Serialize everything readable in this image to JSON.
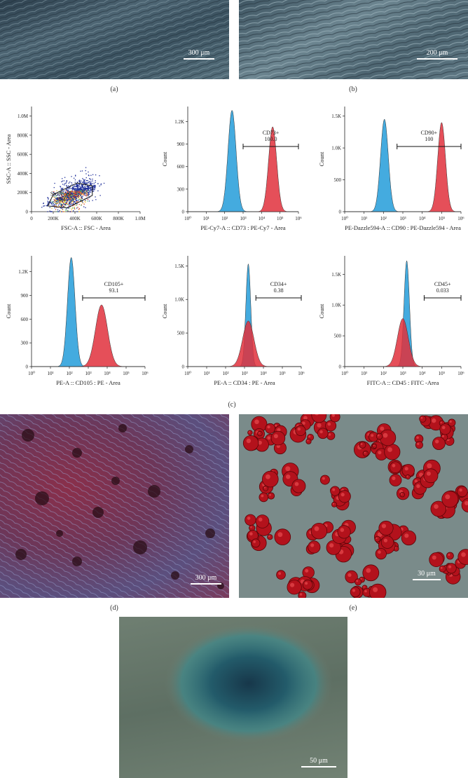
{
  "captions": {
    "a": "(a)",
    "b": "(b)",
    "c": "(c)",
    "d": "(d)",
    "e": "(e)"
  },
  "scale_bars": {
    "a": "300 μm",
    "b": "200 μm",
    "d": "300 μm",
    "e": "30 μm",
    "f": "50 μm"
  },
  "colors": {
    "blue": "#3aa6dd",
    "red": "#e0303c",
    "overlap": "#5a6a8a",
    "density_low": "#1f2f9a"
  },
  "chart_data": [
    {
      "type": "scatter",
      "id": "fsc-ssc",
      "xlabel": "FSC-A :: FSC - Area",
      "ylabel": "SSC-A :: SSC - Area",
      "xticks": [
        "0",
        "200K",
        "400K",
        "600K",
        "800K",
        "1.0M"
      ],
      "yticks": [
        "0",
        "200K",
        "400K",
        "600K",
        "800K",
        "1.0M"
      ],
      "xlim": [
        0,
        1000000
      ],
      "ylim": [
        0,
        1100000
      ],
      "gate": {
        "name": "Stem cell",
        "value": "70.4"
      }
    },
    {
      "type": "area",
      "id": "cd73",
      "xlabel": "PE-Cy7-A :: CD73 : PE-Cy7 - Area",
      "ylabel": "Count",
      "xticks": [
        "10⁰",
        "10¹",
        "10²",
        "10³",
        "10⁴",
        "10⁵",
        "10⁶"
      ],
      "yticks": [
        "0",
        "300",
        "600",
        "900",
        "1.2K"
      ],
      "ylim": [
        0,
        1400
      ],
      "gate": {
        "name": "CD73+",
        "value": "100.0",
        "from": 3,
        "to": 6
      },
      "series": [
        {
          "color": "blue",
          "peak_log": 2.4,
          "height": 1350,
          "width": 0.22
        },
        {
          "color": "red",
          "peak_log": 4.6,
          "height": 1130,
          "width": 0.22
        }
      ]
    },
    {
      "type": "area",
      "id": "cd90",
      "xlabel": "PE-Dazzle594-A :: CD90 : PE-Dazzle594 - Area",
      "ylabel": "Count",
      "xticks": [
        "10⁰",
        "10¹",
        "10²",
        "10³",
        "10⁴",
        "10⁵",
        "10⁶"
      ],
      "yticks": [
        "0",
        "500",
        "1.0K",
        "1.5K"
      ],
      "ylim": [
        0,
        1650
      ],
      "gate": {
        "name": "CD90+",
        "value": "100",
        "from": 2.7,
        "to": 6
      },
      "series": [
        {
          "color": "blue",
          "peak_log": 2.05,
          "height": 1450,
          "width": 0.2
        },
        {
          "color": "red",
          "peak_log": 5.0,
          "height": 1400,
          "width": 0.2
        }
      ]
    },
    {
      "type": "area",
      "id": "cd105",
      "xlabel": "PE-A :: CD105 : PE - Area",
      "ylabel": "Count",
      "xticks": [
        "10⁰",
        "10¹",
        "10²",
        "10³",
        "10⁴",
        "10⁵",
        "10⁶"
      ],
      "yticks": [
        "0",
        "300",
        "600",
        "900",
        "1.2K"
      ],
      "ylim": [
        0,
        1400
      ],
      "gate": {
        "name": "CD105+",
        "value": "93.1",
        "from": 2.7,
        "to": 6
      },
      "series": [
        {
          "color": "blue",
          "peak_log": 2.1,
          "height": 1380,
          "width": 0.2
        },
        {
          "color": "red",
          "peak_log": 3.7,
          "height": 780,
          "width": 0.32
        }
      ]
    },
    {
      "type": "area",
      "id": "cd34",
      "xlabel": "PE-A :: CD34 : PE - Area",
      "ylabel": "Count",
      "xticks": [
        "10⁰",
        "10¹",
        "10²",
        "10³",
        "10⁴",
        "10⁵",
        "10⁶"
      ],
      "yticks": [
        "0",
        "500",
        "1.0K",
        "1.5K"
      ],
      "ylim": [
        0,
        1650
      ],
      "gate": {
        "name": "CD34+",
        "value": "0.38",
        "from": 3.6,
        "to": 6
      },
      "series": [
        {
          "color": "blue",
          "peak_log": 3.2,
          "height": 1530,
          "width": 0.13
        },
        {
          "color": "red",
          "peak_log": 3.2,
          "height": 680,
          "width": 0.3
        }
      ]
    },
    {
      "type": "area",
      "id": "cd45",
      "xlabel": "FITC-A :: CD45 : FITC -Area",
      "ylabel": "Count",
      "xticks": [
        "10⁰",
        "10¹",
        "10²",
        "10³",
        "10⁴",
        "10⁵",
        "10⁶"
      ],
      "yticks": [
        "0",
        "500",
        "1.0K",
        "1.5K"
      ],
      "ylim": [
        0,
        1800
      ],
      "gate": {
        "name": "CD45+",
        "value": "0.033",
        "from": 4.1,
        "to": 6
      },
      "series": [
        {
          "color": "blue",
          "peak_log": 3.2,
          "height": 1720,
          "width": 0.14
        },
        {
          "color": "red",
          "peak_log": 3.0,
          "height": 780,
          "width": 0.28
        }
      ]
    }
  ]
}
